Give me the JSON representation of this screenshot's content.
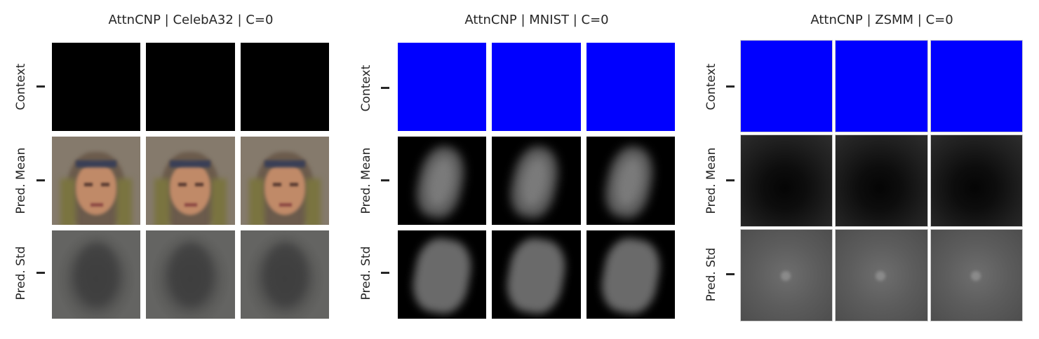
{
  "panels": [
    {
      "title": "AttnCNP | CelebA32 | C=0",
      "row_labels": [
        "Context",
        "Pred. Mean",
        "Pred. Std"
      ],
      "dataset": "celeba"
    },
    {
      "title": "AttnCNP | MNIST | C=0",
      "row_labels": [
        "Context",
        "Pred. Mean",
        "Pred. Std"
      ],
      "dataset": "mnist"
    },
    {
      "title": "AttnCNP | ZSMM | C=0",
      "row_labels": [
        "Context",
        "Pred. Mean",
        "Pred. Std"
      ],
      "dataset": "zsmm"
    }
  ],
  "colors": {
    "context_empty_celeba": "#000000",
    "context_empty_gray": "#0000ff",
    "text": "#262626",
    "background": "#ffffff"
  }
}
